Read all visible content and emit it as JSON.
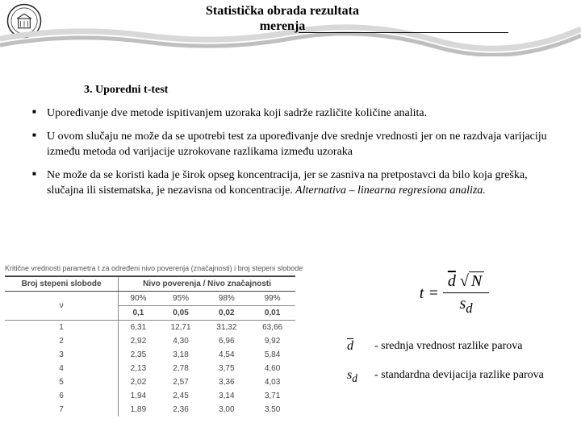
{
  "header": {
    "title_line1": "Statistička obrada rezultata",
    "title_line2": "merenja"
  },
  "section": {
    "heading": "3.  Uporedni t-test",
    "bullets": [
      "Upoređivanje dve metode ispitivanjem uzoraka koji sadrže različite količine analita.",
      "U ovom slučaju ne može da se upotrebi test za upoređivanje dve srednje vrednosti jer on ne razdvaja varijaciju između metoda od varijacije uzrokovane razlikama između uzoraka",
      "Ne može da se koristi kada je širok opseg koncentracija, jer se zasniva na pretpostavci da bilo koja greška, slučajna ili sistematska, je nezavisna od koncentracije."
    ],
    "bullet3_tail": " Alternativa – linearna regresiona analiza."
  },
  "table": {
    "caption": "Kritične vrednosti parametra t za određeni nivo poverenja (značajnosti) i broj stepeni slobode",
    "header1_left": "Broj stepeni slobode",
    "header1_right": "Nivo poverenja / Nivo značajnosti",
    "nu": "ν",
    "conf": [
      "90%",
      "95%",
      "98%",
      "99%"
    ],
    "sig": [
      "0,1",
      "0,05",
      "0,02",
      "0,01"
    ],
    "rows": [
      [
        "1",
        "6,31",
        "12,71",
        "31,32",
        "63,66"
      ],
      [
        "2",
        "2,92",
        "4,30",
        "6,96",
        "9,92"
      ],
      [
        "3",
        "2,35",
        "3,18",
        "4,54",
        "5,84"
      ],
      [
        "4",
        "2,13",
        "2,78",
        "3,75",
        "4,60"
      ],
      [
        "5",
        "2,02",
        "2,57",
        "3,36",
        "4,03"
      ],
      [
        "6",
        "1,94",
        "2,45",
        "3,14",
        "3,71"
      ],
      [
        "7",
        "1,89",
        "2,36",
        "3,00",
        "3,50"
      ]
    ]
  },
  "formula": {
    "lhs": "t",
    "eq": " = ",
    "num_d": "d",
    "num_N": "N",
    "den_s": "s",
    "den_d": "d"
  },
  "defs": {
    "d_sym": "d",
    "d_text": "-  srednja vrednost razlike parova",
    "s_sym1": "s",
    "s_sym2": "d",
    "s_text": "-  standardna devijacija razlike parova"
  },
  "colors": {
    "wave1": "#d8d8d8",
    "wave2": "#bfbfbf",
    "logo_stroke": "#222"
  }
}
